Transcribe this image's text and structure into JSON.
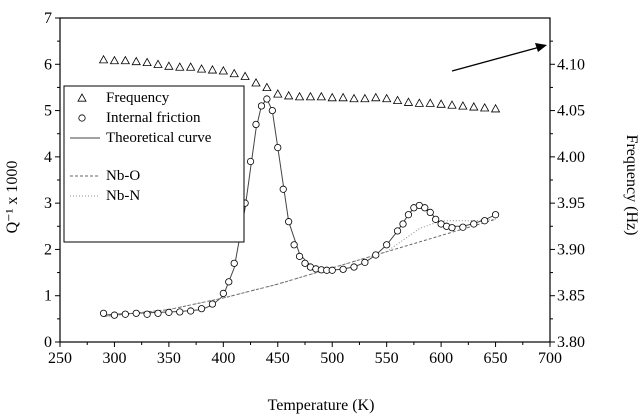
{
  "chart_data": {
    "type": "scatter",
    "title": "",
    "xlabel": "Temperature (K)",
    "ylabel": "Q⁻¹ x 1000",
    "y2label": "Frequency (Hz)",
    "xlim": [
      250,
      700
    ],
    "ylim": [
      0,
      7
    ],
    "y2lim": [
      3.8,
      4.15
    ],
    "x_ticks": [
      "250",
      "300",
      "350",
      "400",
      "450",
      "500",
      "550",
      "600",
      "650",
      "700"
    ],
    "y_ticks": [
      "0",
      "1",
      "2",
      "3",
      "4",
      "5",
      "6",
      "7"
    ],
    "y2_ticks": [
      "3.80",
      "3.85",
      "3.90",
      "3.95",
      "4.00",
      "4.05",
      "4.10"
    ],
    "legend_position": "left",
    "annotation": "arrow pointing to right axis (frequency)",
    "series": [
      {
        "name": "Frequency",
        "marker": "triangle",
        "axis": "right",
        "x": [
          290,
          300,
          310,
          320,
          330,
          340,
          350,
          360,
          370,
          380,
          390,
          400,
          410,
          420,
          430,
          440,
          450,
          460,
          470,
          480,
          490,
          500,
          510,
          520,
          530,
          540,
          550,
          560,
          570,
          580,
          590,
          600,
          610,
          620,
          630,
          640,
          650
        ],
        "values": [
          4.105,
          4.104,
          4.104,
          4.103,
          4.102,
          4.1,
          4.098,
          4.097,
          4.097,
          4.095,
          4.094,
          4.093,
          4.09,
          4.087,
          4.08,
          4.075,
          4.068,
          4.066,
          4.065,
          4.065,
          4.065,
          4.064,
          4.064,
          4.063,
          4.063,
          4.064,
          4.063,
          4.061,
          4.059,
          4.058,
          4.058,
          4.057,
          4.056,
          4.055,
          4.054,
          4.053,
          4.052
        ]
      },
      {
        "name": "Internal friction",
        "marker": "circle",
        "axis": "left",
        "x": [
          290,
          300,
          310,
          320,
          330,
          340,
          350,
          360,
          370,
          380,
          390,
          400,
          405,
          410,
          415,
          420,
          425,
          430,
          435,
          440,
          445,
          450,
          455,
          460,
          465,
          470,
          475,
          480,
          485,
          490,
          495,
          500,
          510,
          520,
          530,
          540,
          550,
          560,
          565,
          570,
          575,
          580,
          585,
          590,
          595,
          600,
          605,
          610,
          620,
          630,
          640,
          650
        ],
        "values": [
          0.62,
          0.58,
          0.6,
          0.62,
          0.6,
          0.62,
          0.64,
          0.65,
          0.67,
          0.72,
          0.82,
          1.05,
          1.3,
          1.7,
          2.3,
          3.0,
          3.9,
          4.7,
          5.1,
          5.25,
          5.0,
          4.2,
          3.3,
          2.6,
          2.1,
          1.85,
          1.7,
          1.62,
          1.58,
          1.56,
          1.55,
          1.55,
          1.57,
          1.62,
          1.72,
          1.88,
          2.1,
          2.4,
          2.55,
          2.75,
          2.9,
          2.95,
          2.9,
          2.8,
          2.65,
          2.55,
          2.5,
          2.47,
          2.48,
          2.55,
          2.62,
          2.75
        ]
      },
      {
        "name": "Theoretical curve",
        "marker": "solid-line",
        "axis": "left",
        "x": [
          290,
          300,
          320,
          340,
          360,
          380,
          390,
          400,
          410,
          420,
          430,
          435,
          440,
          445,
          450,
          460,
          470,
          480,
          490,
          500,
          510,
          520,
          530,
          540,
          550,
          560,
          570,
          575,
          580,
          590,
          600,
          610,
          620,
          630,
          640,
          650
        ],
        "values": [
          0.58,
          0.6,
          0.62,
          0.64,
          0.66,
          0.7,
          0.8,
          1.0,
          1.6,
          2.9,
          4.6,
          5.1,
          5.25,
          5.0,
          4.2,
          2.6,
          1.9,
          1.65,
          1.56,
          1.55,
          1.58,
          1.62,
          1.72,
          1.88,
          2.1,
          2.4,
          2.75,
          2.9,
          2.95,
          2.8,
          2.55,
          2.5,
          2.5,
          2.56,
          2.64,
          2.75
        ]
      },
      {
        "name": "Nb-O",
        "marker": "dashed-line",
        "axis": "left",
        "x": [
          290,
          350,
          400,
          450,
          500,
          550,
          600,
          650
        ],
        "values": [
          0.55,
          0.7,
          0.95,
          1.25,
          1.6,
          1.95,
          2.3,
          2.65
        ]
      },
      {
        "name": "Nb-N",
        "marker": "dotted-line",
        "axis": "left",
        "x": [
          290,
          350,
          400,
          450,
          500,
          550,
          580,
          600,
          630,
          650
        ],
        "values": [
          0.55,
          0.7,
          0.95,
          1.25,
          1.6,
          1.95,
          2.45,
          2.62,
          2.62,
          2.65
        ]
      }
    ]
  }
}
